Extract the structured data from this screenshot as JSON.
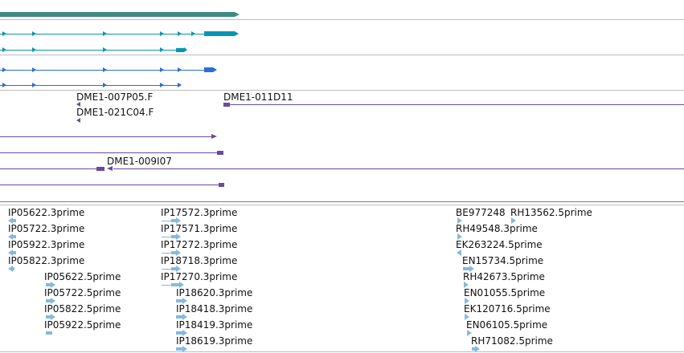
{
  "colors": {
    "gene": "#3e8a85",
    "transcript_a": "#0a96b0",
    "transcript_b": "#2a6fd1",
    "clone": "#6a4a9c",
    "est": "#87b9df",
    "divider": "#bdbdbd"
  },
  "clones": {
    "labels": [
      "DME1-007P05.F",
      "DME1-011D11",
      "DME1-021C04.F",
      "DME1-009I07"
    ]
  },
  "ests": {
    "col1": [
      "IP05622.3prime",
      "IP05722.3prime",
      "IP05922.3prime",
      "IP05822.3prime"
    ],
    "col2": [
      "IP05622.5prime",
      "IP05722.5prime",
      "IP05822.5prime",
      "IP05922.5prime"
    ],
    "col3": [
      "IP17572.3prime",
      "IP17571.3prime",
      "IP17272.3prime",
      "IP18718.3prime",
      "IP17270.3prime"
    ],
    "col4": [
      "IP18620.3prime",
      "IP18418.3prime",
      "IP18419.3prime",
      "IP18619.3prime"
    ],
    "col5a": [
      "BE977248",
      "RH49548.3prime",
      "EK263224.5prime",
      "EN15734.5prime",
      "RH42673.5prime",
      "EN01055.5prime",
      "EK120716.5prime",
      "EN06105.5prime",
      "RH71082.5prime"
    ],
    "col5b": [
      "RH13562.5prime"
    ]
  }
}
